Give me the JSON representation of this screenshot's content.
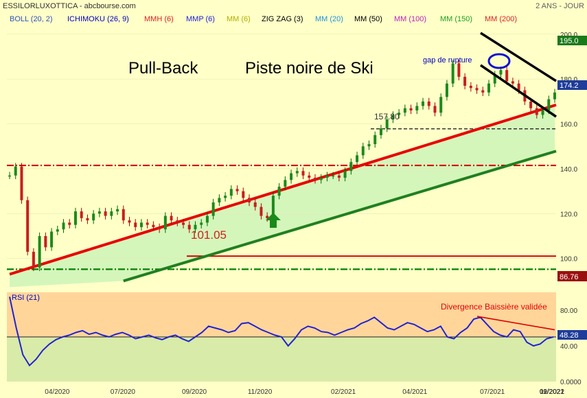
{
  "header": {
    "title": "ESSILORLUXOTTICA - abcbourse.com",
    "period": "2 ANS - JOUR"
  },
  "indicators": [
    {
      "label": "BOLL (20, 2)",
      "color": "#3050C0"
    },
    {
      "label": "ICHIMOKU (26, 9)",
      "color": "#0000C0"
    },
    {
      "label": "MMH (6)",
      "color": "#E02020"
    },
    {
      "label": "MMP (6)",
      "color": "#2020E0"
    },
    {
      "label": "MM (6)",
      "color": "#B0B000"
    },
    {
      "label": "ZIG ZAG (3)",
      "color": "#000000"
    },
    {
      "label": "MM (20)",
      "color": "#2090E0"
    },
    {
      "label": "MM (50)",
      "color": "#000000"
    },
    {
      "label": "MM (100)",
      "color": "#C020C0"
    },
    {
      "label": "MM (150)",
      "color": "#20A020"
    },
    {
      "label": "MM (200)",
      "color": "#E02020"
    }
  ],
  "annotations": {
    "pullback": "Pull-Back",
    "piste": "Piste noire de Ski",
    "gap": "gap de rupture",
    "level_157": "157.80",
    "level_101": "101.05",
    "divergence": "Divergence Baissière validée"
  },
  "price_badges": {
    "top": "195.0",
    "current": "174.2",
    "bottom": "86.76"
  },
  "rsi": {
    "label": "RSI (21)",
    "value_badge": "48.28"
  },
  "chart_data": [
    {
      "type": "line",
      "title": "ESSILORLUXOTTICA",
      "ylim": [
        86.76,
        203
      ],
      "y_ticks": [
        100.0,
        120.0,
        140.0,
        160.0,
        180.0,
        200.0
      ],
      "y_tick_labels": [
        "100.0",
        "120.0",
        "140.0",
        "160.0",
        "180.0",
        "200.0"
      ],
      "x_tick_labels": [
        "04/2020",
        "07/2020",
        "09/2020",
        "11/2020",
        "02/2021",
        "04/2021",
        "07/2021",
        "09/2021",
        "11/2021",
        "02/2022"
      ],
      "x_tick_index": [
        8,
        19,
        31,
        42,
        56,
        68,
        81,
        93,
        104,
        118
      ],
      "series": [
        {
          "values": [
            137,
            141,
            126,
            103,
            96,
            110,
            105,
            112,
            113,
            116,
            115,
            121,
            118,
            117,
            120,
            121,
            119,
            121,
            122,
            117,
            116,
            114,
            116,
            115,
            114,
            113,
            119,
            117,
            116,
            115,
            113,
            115,
            116,
            119,
            125,
            127,
            128,
            131,
            130,
            127,
            125,
            123,
            119,
            118,
            128,
            132,
            135,
            138,
            139,
            137,
            136,
            135,
            136,
            137,
            137,
            136,
            139,
            143,
            146,
            150,
            151,
            155,
            158,
            162,
            164,
            165,
            167,
            166,
            168,
            170,
            168,
            165,
            172,
            178,
            187,
            181,
            177,
            176,
            175,
            174,
            178,
            182,
            184,
            179,
            178,
            175,
            170,
            167,
            164,
            166,
            171,
            174
          ]
        }
      ],
      "lines": [
        {
          "name": "resistance",
          "color": "#E80000",
          "from": [
            0,
            93
          ],
          "to": [
            126,
            197.5
          ]
        },
        {
          "name": "support",
          "color": "#208020",
          "from": [
            19,
            90
          ],
          "to": [
            126,
            176
          ]
        },
        {
          "name": "level_141",
          "color": "#D00000",
          "style": "dash-dot",
          "y": 141.5
        },
        {
          "name": "level_95",
          "color": "#008000",
          "style": "dash-dot",
          "y": 95.2
        },
        {
          "name": "level_101",
          "color": "#D00000",
          "y": 101.05
        },
        {
          "name": "level_157",
          "color": "#000000",
          "style": "dashed",
          "y": 157.8
        }
      ]
    },
    {
      "type": "line",
      "title": "RSI (21)",
      "ylim": [
        0,
        100
      ],
      "y_ticks": [
        0,
        40,
        80
      ],
      "y_tick_labels": [
        "0.0000",
        "40.00",
        "80.00"
      ],
      "overbought": 70,
      "oversold": 30,
      "midline": 50,
      "series": [
        {
          "values": [
            95,
            60,
            30,
            18,
            25,
            35,
            42,
            47,
            50,
            52,
            55,
            57,
            53,
            55,
            52,
            50,
            53,
            55,
            52,
            48,
            50,
            52,
            49,
            47,
            50,
            52,
            48,
            45,
            50,
            55,
            62,
            60,
            58,
            55,
            57,
            65,
            66,
            62,
            58,
            55,
            52,
            50,
            40,
            48,
            58,
            62,
            60,
            56,
            55,
            52,
            55,
            58,
            60,
            65,
            68,
            72,
            66,
            60,
            58,
            62,
            66,
            64,
            60,
            56,
            58,
            62,
            50,
            48,
            55,
            60,
            70,
            72,
            64,
            56,
            52,
            50,
            58,
            56,
            44,
            40,
            42,
            48,
            50
          ]
        },
        {
          "name": "divergence",
          "values": [
            73,
            58
          ]
        }
      ]
    }
  ]
}
